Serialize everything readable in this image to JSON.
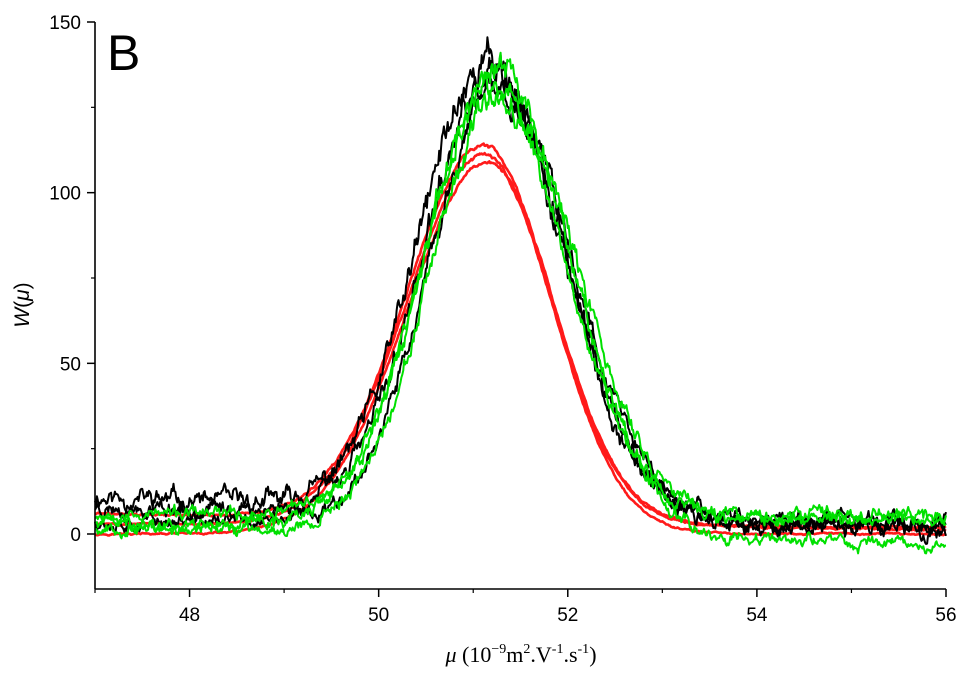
{
  "chart_data": {
    "type": "line",
    "panel_label": "B",
    "xlabel": "μ (10⁻⁹m².V⁻¹.s⁻¹)",
    "xlabel_parts": {
      "symbol": "μ",
      "open": " (10",
      "exp1": "−9",
      "m": "m",
      "exp2": "2",
      "v": ".V",
      "exp3": "-1",
      "s": ".s",
      "exp4": "-1",
      "close": ")"
    },
    "ylabel": "W(μ)",
    "ylabel_parts": {
      "w": "W",
      "open": "(",
      "mu": "μ",
      "close": ")"
    },
    "xlim": [
      47,
      56
    ],
    "ylim": [
      -17,
      150
    ],
    "x_ticks": [
      48,
      50,
      52,
      54,
      56
    ],
    "x_tick_labels": [
      "48",
      "50",
      "52",
      "54",
      "56"
    ],
    "y_ticks": [
      0,
      50,
      100,
      150
    ],
    "y_tick_labels": [
      "0",
      "50",
      "100",
      "150"
    ],
    "legend": "none",
    "grid": false,
    "series": [
      {
        "color": "#000000",
        "peak_x": 51.15,
        "peak_y": 139,
        "sigma_left": 0.72,
        "sigma_right": 0.78,
        "base_left": 11,
        "base_right": 1,
        "noise": 5.5,
        "seed": 11
      },
      {
        "color": "#000000",
        "peak_x": 51.2,
        "peak_y": 133,
        "sigma_left": 0.72,
        "sigma_right": 0.76,
        "base_left": 8,
        "base_right": 3,
        "noise": 4.5,
        "seed": 23
      },
      {
        "color": "#000000",
        "peak_x": 51.25,
        "peak_y": 130,
        "sigma_left": 0.7,
        "sigma_right": 0.8,
        "base_left": 4,
        "base_right": 2,
        "noise": 4.0,
        "seed": 37
      },
      {
        "color": "#00e000",
        "peak_x": 51.25,
        "peak_y": 136,
        "sigma_left": 0.73,
        "sigma_right": 0.8,
        "base_left": 3,
        "base_right": 5,
        "noise": 4.0,
        "seed": 41
      },
      {
        "color": "#00e000",
        "peak_x": 51.2,
        "peak_y": 131,
        "sigma_left": 0.72,
        "sigma_right": 0.77,
        "base_left": 6,
        "base_right": 4,
        "noise": 3.5,
        "seed": 53
      },
      {
        "color": "#00e000",
        "peak_x": 51.3,
        "peak_y": 128,
        "sigma_left": 0.74,
        "sigma_right": 0.78,
        "base_left": 2,
        "base_right": -3,
        "noise": 3.5,
        "seed": 67
      },
      {
        "color": "#ff1a1a",
        "peak_x": 51.1,
        "peak_y": 114,
        "sigma_left": 0.8,
        "sigma_right": 0.72,
        "base_left": 6,
        "base_right": 1,
        "noise": 0.6,
        "seed": 71
      },
      {
        "color": "#ff1a1a",
        "peak_x": 51.12,
        "peak_y": 111,
        "sigma_left": 0.82,
        "sigma_right": 0.71,
        "base_left": 3,
        "base_right": 2,
        "noise": 0.5,
        "seed": 83
      },
      {
        "color": "#ff1a1a",
        "peak_x": 51.15,
        "peak_y": 109,
        "sigma_left": 0.84,
        "sigma_right": 0.7,
        "base_left": 0,
        "base_right": 0,
        "noise": 0.5,
        "seed": 97
      }
    ]
  }
}
